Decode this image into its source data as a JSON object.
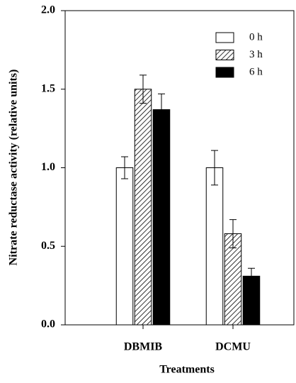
{
  "chart_data": {
    "type": "bar",
    "x_label": "Treatments",
    "y_label": "Nitrate reductase activity (relative units)",
    "categories": [
      "DBMIB",
      "DCMU"
    ],
    "series": [
      {
        "name": "0 h",
        "color": "#ffffff",
        "hatch": false,
        "values": [
          1.0,
          1.0
        ],
        "errors": [
          0.07,
          0.11
        ]
      },
      {
        "name": "3 h",
        "color": "#ffffff",
        "hatch": true,
        "values": [
          1.5,
          0.58
        ],
        "errors": [
          0.09,
          0.09
        ]
      },
      {
        "name": "6 h",
        "color": "#000000",
        "hatch": false,
        "values": [
          1.37,
          0.31
        ],
        "errors": [
          0.1,
          0.05
        ]
      }
    ],
    "ylim": [
      0,
      2
    ],
    "yticks": [
      {
        "value": 0,
        "label": "0.0"
      },
      {
        "value": 0.5,
        "label": "0.5"
      },
      {
        "value": 1,
        "label": "1.0"
      },
      {
        "value": 1.5,
        "label": "1.5"
      },
      {
        "value": 2,
        "label": "2.0"
      }
    ],
    "legend": "upper right"
  }
}
